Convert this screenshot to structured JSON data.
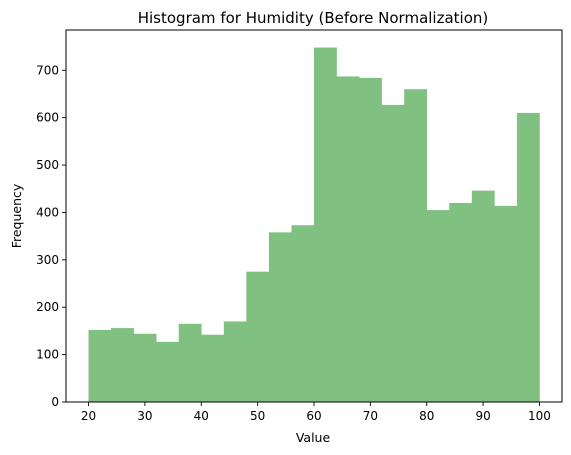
{
  "chart_data": {
    "type": "bar",
    "title": "Histogram for Humidity (Before Normalization)",
    "xlabel": "Value",
    "ylabel": "Frequency",
    "bin_edges": [
      20,
      24,
      28,
      32,
      36,
      40,
      44,
      48,
      52,
      56,
      60,
      64,
      68,
      72,
      76,
      80,
      84,
      88,
      92,
      96,
      100
    ],
    "values": [
      152,
      156,
      144,
      127,
      165,
      142,
      170,
      275,
      358,
      373,
      748,
      687,
      684,
      627,
      660,
      405,
      420,
      446,
      414,
      610
    ],
    "color": "#80c080",
    "xlim": [
      16,
      104
    ],
    "ylim": [
      0,
      785
    ],
    "xticks": [
      20,
      30,
      40,
      50,
      60,
      70,
      80,
      90,
      100
    ],
    "yticks": [
      0,
      100,
      200,
      300,
      400,
      500,
      600,
      700
    ],
    "grid": false
  }
}
